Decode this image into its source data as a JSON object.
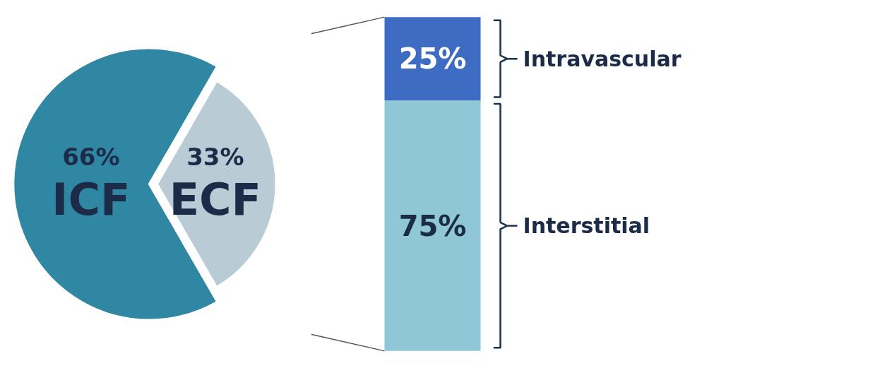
{
  "chart_data": [
    {
      "type": "pie",
      "categories": [
        "ICF",
        "ECF"
      ],
      "values": [
        66,
        33
      ],
      "colors": [
        "#2f87a3",
        "#b9ccd5"
      ],
      "value_labels": [
        "66%",
        "33%"
      ]
    },
    {
      "type": "bar",
      "stacked": true,
      "categories": [
        null
      ],
      "tick_labels": false,
      "series": [
        {
          "name": "Interstitial",
          "color": "#8fc7d6",
          "values": [
            75
          ],
          "value_labels": [
            "75%"
          ]
        },
        {
          "name": "Intravascular",
          "color": "#3d6cc2",
          "values": [
            25
          ],
          "value_labels": [
            "25%"
          ]
        }
      ]
    }
  ]
}
